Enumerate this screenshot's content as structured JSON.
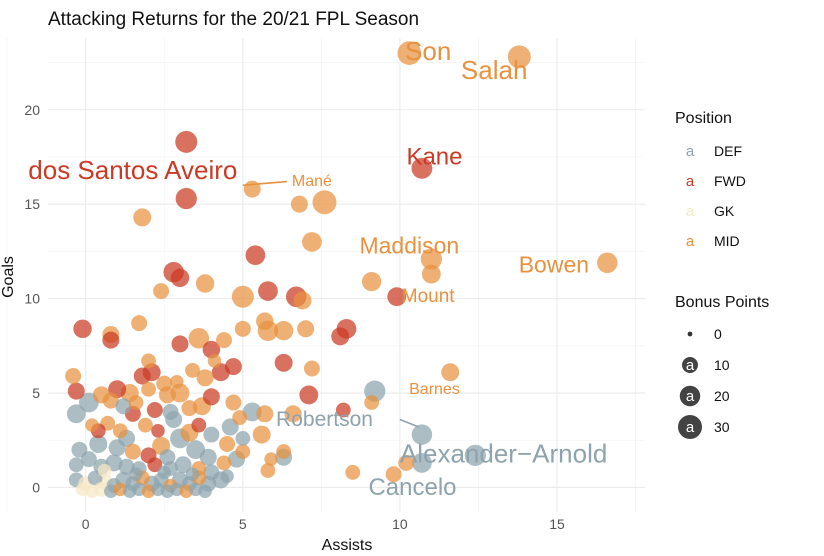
{
  "chart_data": {
    "type": "scatter",
    "title": "Attacking Returns for the 20/21 FPL Season",
    "xlabel": "Assists",
    "ylabel": "Goals",
    "xlim": [
      -1.2,
      17.8
    ],
    "ylim": [
      -1.3,
      23.8
    ],
    "x_ticks": [
      0,
      5,
      10,
      15
    ],
    "y_ticks": [
      0,
      5,
      10,
      15,
      20
    ],
    "grid": true,
    "legend_position": "right",
    "position_legend": {
      "title": "Position",
      "key_glyph": "a",
      "items": [
        {
          "label": "DEF",
          "color": "#8ea3ad"
        },
        {
          "label": "FWD",
          "color": "#cb3a24"
        },
        {
          "label": "GK",
          "color": "#f7e8c6"
        },
        {
          "label": "MID",
          "color": "#e8913e"
        }
      ]
    },
    "bonus_legend": {
      "title": "Bonus Points",
      "key_glyph": "a",
      "items": [
        {
          "label": "0",
          "value": 0
        },
        {
          "label": "10",
          "value": 10
        },
        {
          "label": "20",
          "value": 20
        },
        {
          "label": "30",
          "value": 30
        }
      ]
    },
    "points": [
      {
        "x": 10.3,
        "y": 23.0,
        "pos": "MID",
        "bonus": 29
      },
      {
        "x": 13.8,
        "y": 22.8,
        "pos": "MID",
        "bonus": 27
      },
      {
        "x": 3.2,
        "y": 18.3,
        "pos": "FWD",
        "bonus": 24
      },
      {
        "x": 10.7,
        "y": 16.9,
        "pos": "FWD",
        "bonus": 21
      },
      {
        "x": 3.2,
        "y": 15.3,
        "pos": "FWD",
        "bonus": 22
      },
      {
        "x": 5.3,
        "y": 15.8,
        "pos": "MID",
        "bonus": 12
      },
      {
        "x": 7.6,
        "y": 15.1,
        "pos": "MID",
        "bonus": 30
      },
      {
        "x": 6.8,
        "y": 15.0,
        "pos": "MID",
        "bonus": 12
      },
      {
        "x": 1.8,
        "y": 14.3,
        "pos": "MID",
        "bonus": 14
      },
      {
        "x": 7.2,
        "y": 13.0,
        "pos": "MID",
        "bonus": 18
      },
      {
        "x": 11.0,
        "y": 12.1,
        "pos": "MID",
        "bonus": 22
      },
      {
        "x": 16.6,
        "y": 11.9,
        "pos": "MID",
        "bonus": 20
      },
      {
        "x": 11.0,
        "y": 11.3,
        "pos": "MID",
        "bonus": 16
      },
      {
        "x": 2.8,
        "y": 11.4,
        "pos": "FWD",
        "bonus": 20
      },
      {
        "x": 3.0,
        "y": 11.1,
        "pos": "FWD",
        "bonus": 15
      },
      {
        "x": 5.4,
        "y": 12.3,
        "pos": "FWD",
        "bonus": 18
      },
      {
        "x": 3.8,
        "y": 10.8,
        "pos": "MID",
        "bonus": 15
      },
      {
        "x": 2.4,
        "y": 10.4,
        "pos": "MID",
        "bonus": 10
      },
      {
        "x": 5.0,
        "y": 10.1,
        "pos": "MID",
        "bonus": 24
      },
      {
        "x": 5.8,
        "y": 10.4,
        "pos": "FWD",
        "bonus": 18
      },
      {
        "x": 6.7,
        "y": 10.1,
        "pos": "FWD",
        "bonus": 20
      },
      {
        "x": 6.9,
        "y": 9.9,
        "pos": "MID",
        "bonus": 14
      },
      {
        "x": 9.9,
        "y": 10.1,
        "pos": "FWD",
        "bonus": 16
      },
      {
        "x": 9.1,
        "y": 10.9,
        "pos": "MID",
        "bonus": 17
      },
      {
        "x": -0.1,
        "y": 8.4,
        "pos": "FWD",
        "bonus": 15
      },
      {
        "x": 0.8,
        "y": 8.1,
        "pos": "MID",
        "bonus": 12
      },
      {
        "x": 0.8,
        "y": 7.8,
        "pos": "FWD",
        "bonus": 12
      },
      {
        "x": 1.7,
        "y": 8.7,
        "pos": "MID",
        "bonus": 10
      },
      {
        "x": 3.0,
        "y": 7.6,
        "pos": "FWD",
        "bonus": 12
      },
      {
        "x": 3.6,
        "y": 7.9,
        "pos": "MID",
        "bonus": 20
      },
      {
        "x": 4.0,
        "y": 7.3,
        "pos": "FWD",
        "bonus": 13
      },
      {
        "x": 4.4,
        "y": 7.8,
        "pos": "MID",
        "bonus": 10
      },
      {
        "x": 5.0,
        "y": 8.4,
        "pos": "MID",
        "bonus": 10
      },
      {
        "x": 5.7,
        "y": 8.8,
        "pos": "MID",
        "bonus": 13
      },
      {
        "x": 5.8,
        "y": 8.3,
        "pos": "MID",
        "bonus": 20
      },
      {
        "x": 6.3,
        "y": 8.3,
        "pos": "MID",
        "bonus": 17
      },
      {
        "x": 7.0,
        "y": 8.4,
        "pos": "MID",
        "bonus": 12
      },
      {
        "x": 8.1,
        "y": 8.0,
        "pos": "FWD",
        "bonus": 14
      },
      {
        "x": 8.3,
        "y": 8.4,
        "pos": "FWD",
        "bonus": 18
      },
      {
        "x": 6.3,
        "y": 6.6,
        "pos": "FWD",
        "bonus": 14
      },
      {
        "x": 7.2,
        "y": 6.3,
        "pos": "MID",
        "bonus": 10
      },
      {
        "x": 11.6,
        "y": 6.1,
        "pos": "MID",
        "bonus": 14
      },
      {
        "x": 9.2,
        "y": 5.1,
        "pos": "DEF",
        "bonus": 22
      },
      {
        "x": 7.1,
        "y": 4.9,
        "pos": "FWD",
        "bonus": 16
      },
      {
        "x": 8.2,
        "y": 4.1,
        "pos": "FWD",
        "bonus": 8
      },
      {
        "x": 9.1,
        "y": 4.5,
        "pos": "MID",
        "bonus": 8
      },
      {
        "x": 10.7,
        "y": 2.8,
        "pos": "DEF",
        "bonus": 20
      },
      {
        "x": 10.7,
        "y": 1.3,
        "pos": "DEF",
        "bonus": 18
      },
      {
        "x": 12.4,
        "y": 1.7,
        "pos": "DEF",
        "bonus": 22
      },
      {
        "x": 10.2,
        "y": 1.3,
        "pos": "MID",
        "bonus": 10
      },
      {
        "x": 9.8,
        "y": 0.7,
        "pos": "MID",
        "bonus": 10
      },
      {
        "x": 8.5,
        "y": 0.8,
        "pos": "MID",
        "bonus": 8
      },
      {
        "x": 6.3,
        "y": 1.6,
        "pos": "DEF",
        "bonus": 12
      },
      {
        "x": 5.8,
        "y": 0.9,
        "pos": "MID",
        "bonus": 8
      },
      {
        "x": 5.3,
        "y": 4.0,
        "pos": "DEF",
        "bonus": 16
      },
      {
        "x": 5.7,
        "y": 3.9,
        "pos": "MID",
        "bonus": 12
      },
      {
        "x": 6.6,
        "y": 3.9,
        "pos": "MID",
        "bonus": 12
      },
      {
        "x": 4.6,
        "y": 3.2,
        "pos": "DEF",
        "bonus": 12
      },
      {
        "x": 4.7,
        "y": 4.5,
        "pos": "MID",
        "bonus": 10
      },
      {
        "x": 5.6,
        "y": 2.8,
        "pos": "MID",
        "bonus": 14
      },
      {
        "x": 3.8,
        "y": 5.8,
        "pos": "MID",
        "bonus": 12
      },
      {
        "x": 4.3,
        "y": 6.1,
        "pos": "FWD",
        "bonus": 14
      },
      {
        "x": 4.7,
        "y": 6.4,
        "pos": "FWD",
        "bonus": 12
      },
      {
        "x": 4.0,
        "y": 4.8,
        "pos": "FWD",
        "bonus": 12
      },
      {
        "x": 3.7,
        "y": 4.3,
        "pos": "MID",
        "bonus": 14
      },
      {
        "x": 3.0,
        "y": 5.0,
        "pos": "MID",
        "bonus": 16
      },
      {
        "x": 2.6,
        "y": 4.9,
        "pos": "MID",
        "bonus": 12
      },
      {
        "x": 2.1,
        "y": 6.1,
        "pos": "FWD",
        "bonus": 14
      },
      {
        "x": 1.8,
        "y": 5.9,
        "pos": "FWD",
        "bonus": 12
      },
      {
        "x": 1.4,
        "y": 5.0,
        "pos": "MID",
        "bonus": 14
      },
      {
        "x": 1.0,
        "y": 5.2,
        "pos": "FWD",
        "bonus": 14
      },
      {
        "x": 0.8,
        "y": 4.6,
        "pos": "MID",
        "bonus": 10
      },
      {
        "x": 0.5,
        "y": 4.9,
        "pos": "MID",
        "bonus": 12
      },
      {
        "x": 0.1,
        "y": 4.5,
        "pos": "DEF",
        "bonus": 18
      },
      {
        "x": -0.3,
        "y": 5.1,
        "pos": "FWD",
        "bonus": 12
      },
      {
        "x": -0.4,
        "y": 5.9,
        "pos": "MID",
        "bonus": 10
      },
      {
        "x": -0.3,
        "y": 3.9,
        "pos": "DEF",
        "bonus": 16
      },
      {
        "x": 2.0,
        "y": 6.7,
        "pos": "MID",
        "bonus": 8
      },
      {
        "x": 2.5,
        "y": 5.5,
        "pos": "MID",
        "bonus": 10
      },
      {
        "x": 2.2,
        "y": 4.1,
        "pos": "FWD",
        "bonus": 10
      },
      {
        "x": 2.7,
        "y": 4.0,
        "pos": "DEF",
        "bonus": 10
      },
      {
        "x": 3.3,
        "y": 4.2,
        "pos": "MID",
        "bonus": 10
      },
      {
        "x": 1.5,
        "y": 3.9,
        "pos": "FWD",
        "bonus": 10
      },
      {
        "x": 1.2,
        "y": 4.3,
        "pos": "DEF",
        "bonus": 10
      },
      {
        "x": 0.7,
        "y": 3.4,
        "pos": "MID",
        "bonus": 8
      },
      {
        "x": 0.4,
        "y": 3.0,
        "pos": "FWD",
        "bonus": 8
      },
      {
        "x": 1.3,
        "y": 2.6,
        "pos": "DEF",
        "bonus": 12
      },
      {
        "x": 1.9,
        "y": 3.3,
        "pos": "MID",
        "bonus": 8
      },
      {
        "x": 2.8,
        "y": 3.6,
        "pos": "DEF",
        "bonus": 12
      },
      {
        "x": 3.3,
        "y": 2.9,
        "pos": "MID",
        "bonus": 14
      },
      {
        "x": 3.6,
        "y": 3.3,
        "pos": "FWD",
        "bonus": 8
      },
      {
        "x": 4.0,
        "y": 2.8,
        "pos": "DEF",
        "bonus": 10
      },
      {
        "x": 3.0,
        "y": 2.6,
        "pos": "DEF",
        "bonus": 18
      },
      {
        "x": 2.4,
        "y": 2.2,
        "pos": "MID",
        "bonus": 14
      },
      {
        "x": 3.5,
        "y": 2.0,
        "pos": "DEF",
        "bonus": 16
      },
      {
        "x": 3.9,
        "y": 1.6,
        "pos": "DEF",
        "bonus": 12
      },
      {
        "x": 2.0,
        "y": 1.7,
        "pos": "FWD",
        "bonus": 10
      },
      {
        "x": 2.6,
        "y": 1.6,
        "pos": "DEF",
        "bonus": 10
      },
      {
        "x": 1.5,
        "y": 1.9,
        "pos": "MID",
        "bonus": 10
      },
      {
        "x": 1.0,
        "y": 2.1,
        "pos": "DEF",
        "bonus": 12
      },
      {
        "x": 0.4,
        "y": 2.3,
        "pos": "DEF",
        "bonus": 14
      },
      {
        "x": -0.2,
        "y": 2.0,
        "pos": "DEF",
        "bonus": 10
      },
      {
        "x": -0.3,
        "y": 1.2,
        "pos": "DEF",
        "bonus": 8
      },
      {
        "x": 0.1,
        "y": 1.5,
        "pos": "DEF",
        "bonus": 10
      },
      {
        "x": 0.5,
        "y": 1.1,
        "pos": "DEF",
        "bonus": 10
      },
      {
        "x": 0.9,
        "y": 1.3,
        "pos": "DEF",
        "bonus": 12
      },
      {
        "x": 1.3,
        "y": 1.1,
        "pos": "DEF",
        "bonus": 10
      },
      {
        "x": 1.7,
        "y": 1.0,
        "pos": "DEF",
        "bonus": 8
      },
      {
        "x": 2.2,
        "y": 1.2,
        "pos": "FWD",
        "bonus": 8
      },
      {
        "x": 2.7,
        "y": 1.0,
        "pos": "DEF",
        "bonus": 8
      },
      {
        "x": 3.1,
        "y": 1.2,
        "pos": "DEF",
        "bonus": 12
      },
      {
        "x": 3.6,
        "y": 1.0,
        "pos": "MID",
        "bonus": 8
      },
      {
        "x": 4.0,
        "y": 0.8,
        "pos": "DEF",
        "bonus": 10
      },
      {
        "x": 4.4,
        "y": 1.3,
        "pos": "MID",
        "bonus": 8
      },
      {
        "x": 4.8,
        "y": 1.5,
        "pos": "DEF",
        "bonus": 12
      },
      {
        "x": 5.0,
        "y": 1.9,
        "pos": "MID",
        "bonus": 8
      },
      {
        "x": 4.5,
        "y": 2.3,
        "pos": "MID",
        "bonus": 10
      },
      {
        "x": 5.0,
        "y": 2.6,
        "pos": "DEF",
        "bonus": 8
      },
      {
        "x": 5.9,
        "y": 1.5,
        "pos": "MID",
        "bonus": 6
      },
      {
        "x": 6.3,
        "y": 1.9,
        "pos": "MID",
        "bonus": 8
      },
      {
        "x": -0.3,
        "y": 0.4,
        "pos": "DEF",
        "bonus": 8
      },
      {
        "x": 0.0,
        "y": 0.2,
        "pos": "GK",
        "bonus": 8
      },
      {
        "x": 0.3,
        "y": 0.5,
        "pos": "DEF",
        "bonus": 8
      },
      {
        "x": 0.6,
        "y": 0.3,
        "pos": "GK",
        "bonus": 10
      },
      {
        "x": 0.9,
        "y": 0.1,
        "pos": "DEF",
        "bonus": 8
      },
      {
        "x": 1.2,
        "y": 0.4,
        "pos": "DEF",
        "bonus": 10
      },
      {
        "x": 1.5,
        "y": 0.2,
        "pos": "DEF",
        "bonus": 8
      },
      {
        "x": 1.8,
        "y": 0.5,
        "pos": "MID",
        "bonus": 8
      },
      {
        "x": 2.1,
        "y": 0.2,
        "pos": "DEF",
        "bonus": 10
      },
      {
        "x": 2.4,
        "y": 0.4,
        "pos": "DEF",
        "bonus": 8
      },
      {
        "x": 2.7,
        "y": 0.1,
        "pos": "MID",
        "bonus": 6
      },
      {
        "x": 3.0,
        "y": 0.4,
        "pos": "DEF",
        "bonus": 10
      },
      {
        "x": 3.3,
        "y": 0.2,
        "pos": "DEF",
        "bonus": 8
      },
      {
        "x": 3.6,
        "y": 0.5,
        "pos": "MID",
        "bonus": 8
      },
      {
        "x": 3.9,
        "y": 0.2,
        "pos": "DEF",
        "bonus": 10
      },
      {
        "x": 4.3,
        "y": 0.4,
        "pos": "DEF",
        "bonus": 12
      },
      {
        "x": -0.1,
        "y": -0.1,
        "pos": "GK",
        "bonus": 6
      },
      {
        "x": 0.2,
        "y": -0.2,
        "pos": "GK",
        "bonus": 6
      },
      {
        "x": 0.5,
        "y": -0.1,
        "pos": "GK",
        "bonus": 8
      },
      {
        "x": 0.8,
        "y": -0.2,
        "pos": "DEF",
        "bonus": 6
      },
      {
        "x": 1.1,
        "y": -0.1,
        "pos": "MID",
        "bonus": 6
      },
      {
        "x": 1.4,
        "y": -0.2,
        "pos": "DEF",
        "bonus": 6
      },
      {
        "x": 1.7,
        "y": -0.1,
        "pos": "DEF",
        "bonus": 6
      },
      {
        "x": 2.0,
        "y": -0.2,
        "pos": "MID",
        "bonus": 6
      },
      {
        "x": 2.3,
        "y": -0.1,
        "pos": "DEF",
        "bonus": 6
      },
      {
        "x": 2.6,
        "y": -0.2,
        "pos": "DEF",
        "bonus": 6
      },
      {
        "x": 2.9,
        "y": -0.1,
        "pos": "DEF",
        "bonus": 6
      },
      {
        "x": 3.2,
        "y": -0.2,
        "pos": "MID",
        "bonus": 6
      },
      {
        "x": 3.5,
        "y": -0.1,
        "pos": "DEF",
        "bonus": 6
      },
      {
        "x": 3.8,
        "y": -0.2,
        "pos": "DEF",
        "bonus": 6
      },
      {
        "x": 0.6,
        "y": 0.9,
        "pos": "GK",
        "bonus": 6
      },
      {
        "x": 1.6,
        "y": 0.7,
        "pos": "DEF",
        "bonus": 6
      },
      {
        "x": 2.5,
        "y": 0.8,
        "pos": "DEF",
        "bonus": 6
      },
      {
        "x": 3.4,
        "y": 0.7,
        "pos": "DEF",
        "bonus": 6
      },
      {
        "x": 4.5,
        "y": 0.6,
        "pos": "DEF",
        "bonus": 6
      },
      {
        "x": 4.9,
        "y": 3.7,
        "pos": "MID",
        "bonus": 8
      },
      {
        "x": 1.1,
        "y": 3.0,
        "pos": "MID",
        "bonus": 8
      },
      {
        "x": 0.2,
        "y": 3.3,
        "pos": "MID",
        "bonus": 6
      },
      {
        "x": 2.3,
        "y": 3.0,
        "pos": "FWD",
        "bonus": 6
      },
      {
        "x": 1.6,
        "y": 4.5,
        "pos": "MID",
        "bonus": 8
      },
      {
        "x": 2.0,
        "y": 5.2,
        "pos": "MID",
        "bonus": 8
      },
      {
        "x": 2.9,
        "y": 5.6,
        "pos": "MID",
        "bonus": 6
      },
      {
        "x": 3.4,
        "y": 6.2,
        "pos": "MID",
        "bonus": 8
      },
      {
        "x": 4.1,
        "y": 6.7,
        "pos": "MID",
        "bonus": 6
      }
    ],
    "labels": [
      {
        "text": "Son",
        "x": 10.9,
        "y": 23.1,
        "pos": "MID",
        "size": 26
      },
      {
        "text": "Salah",
        "x": 13.0,
        "y": 22.1,
        "pos": "MID",
        "size": 26
      },
      {
        "text": "dos Santos Aveiro",
        "x": 1.5,
        "y": 16.8,
        "pos": "FWD",
        "size": 26
      },
      {
        "text": "Kane",
        "x": 11.1,
        "y": 17.5,
        "pos": "FWD",
        "size": 24
      },
      {
        "text": "Mané",
        "x": 7.2,
        "y": 16.2,
        "pos": "MID",
        "size": 16
      },
      {
        "text": "Maddison",
        "x": 10.3,
        "y": 12.8,
        "pos": "MID",
        "size": 23
      },
      {
        "text": "Bowen",
        "x": 14.9,
        "y": 11.8,
        "pos": "MID",
        "size": 23
      },
      {
        "text": "Mount",
        "x": 10.9,
        "y": 10.1,
        "pos": "MID",
        "size": 19
      },
      {
        "text": "Barnes",
        "x": 11.1,
        "y": 5.2,
        "pos": "MID",
        "size": 16
      },
      {
        "text": "Robertson",
        "x": 7.6,
        "y": 3.6,
        "pos": "DEF",
        "size": 21
      },
      {
        "text": "Alexander−Arnold",
        "x": 13.3,
        "y": 1.8,
        "pos": "DEF",
        "size": 26
      },
      {
        "text": "Cancelo",
        "x": 10.4,
        "y": 0.0,
        "pos": "DEF",
        "size": 24
      }
    ],
    "label_segments": [
      {
        "x1": 5.0,
        "y1": 16.0,
        "x2": 6.4,
        "y2": 16.2
      },
      {
        "x1": 10.0,
        "y1": 3.6,
        "x2": 10.6,
        "y2": 3.2
      }
    ]
  }
}
